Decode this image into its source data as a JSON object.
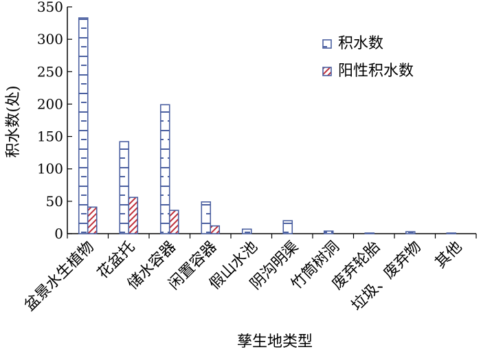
{
  "chart_data": {
    "type": "bar",
    "categories": [
      "盆景水生植物",
      "花盆托",
      "储水容器",
      "闲置容器",
      "假山水池",
      "阴沟明渠",
      "竹筒树洞",
      "废弃轮胎",
      "垃圾、废弃物",
      "其他"
    ],
    "series": [
      {
        "name": "积水数",
        "values": [
          333,
          142,
          199,
          49,
          7,
          20,
          4,
          1,
          3,
          1
        ],
        "color": "#4a5fa0"
      },
      {
        "name": "阳性积水数",
        "values": [
          41,
          56,
          36,
          12,
          0,
          0,
          0,
          0,
          0,
          0
        ],
        "color": "#c0303a"
      }
    ],
    "xlabel": "孳生地类型",
    "ylabel": "积水数(处)",
    "ylim": [
      0,
      350
    ],
    "yticks": [
      0,
      50,
      100,
      150,
      200,
      250,
      300,
      350
    ],
    "grid": false,
    "legend": "top-right"
  }
}
